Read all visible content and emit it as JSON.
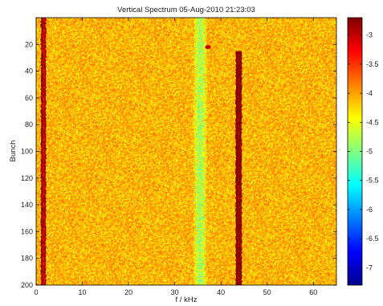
{
  "chart_data": {
    "type": "heatmap",
    "title": "Vertical Spectrum 05-Aug-2010 21:23:03",
    "xlabel": "f / kHz",
    "ylabel": "Bunch",
    "xlim": [
      0,
      65
    ],
    "ylim": [
      0,
      200
    ],
    "y_reversed": true,
    "x_ticks": [
      0,
      10,
      20,
      30,
      40,
      50,
      60
    ],
    "y_ticks": [
      20,
      40,
      60,
      80,
      100,
      120,
      140,
      160,
      180,
      200
    ],
    "colorbar": {
      "range": [
        -7.3,
        -2.7
      ],
      "ticks": [
        -3,
        -3.5,
        -4,
        -4.5,
        -5,
        -5.5,
        -6,
        -6.5,
        -7
      ],
      "colormap": "jet"
    },
    "background_level": -4.1,
    "features": [
      {
        "kind": "vertical_line",
        "x": 1.5,
        "width_khz": 0.9,
        "y_range": [
          0,
          200
        ],
        "level": -3.3
      },
      {
        "kind": "vertical_band",
        "x": 35.5,
        "width_khz": 3.0,
        "y_range": [
          0,
          200
        ],
        "level": -4.9
      },
      {
        "kind": "vertical_line",
        "x": 43.8,
        "width_khz": 1.2,
        "y_range": [
          25,
          200
        ],
        "level": -2.9
      },
      {
        "kind": "spot",
        "x": 37.2,
        "y": 22,
        "level": -3.0
      }
    ]
  }
}
